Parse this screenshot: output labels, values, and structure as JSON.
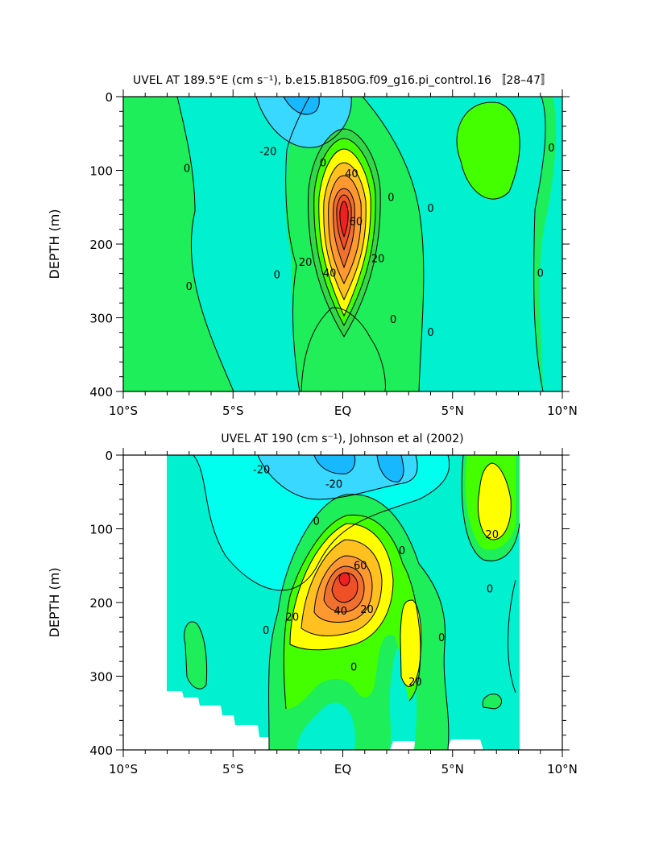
{
  "chart_data": [
    {
      "type": "contour",
      "title": "UVEL AT 189.5°E (cm s⁻¹), b.e15.B1850G.f09_g16.pi_control.16 〚28–47〛",
      "ylabel": "DEPTH (m)",
      "xlim": [
        -10,
        10
      ],
      "ylim": [
        400,
        0
      ],
      "x_ticks": [
        -10,
        -5,
        0,
        5,
        10
      ],
      "x_tick_labels": [
        "10°S",
        "5°S",
        "EQ",
        "5°N",
        "10°N"
      ],
      "y_ticks": [
        0,
        100,
        200,
        300,
        400
      ],
      "y_tick_labels": [
        "0",
        "100",
        "200",
        "300",
        "400"
      ],
      "core": {
        "lat": 0,
        "depth": 155,
        "max_speed": 95
      },
      "contour_labels": [
        {
          "text": "-20",
          "lat": -3.4,
          "depth": 75
        },
        {
          "text": "0",
          "lat": -7.1,
          "depth": 98
        },
        {
          "text": "0",
          "lat": -7.0,
          "depth": 258
        },
        {
          "text": "0",
          "lat": -3.0,
          "depth": 242
        },
        {
          "text": "0",
          "lat": -0.9,
          "depth": 90
        },
        {
          "text": "40",
          "lat": 0.4,
          "depth": 105
        },
        {
          "text": "60",
          "lat": 0.6,
          "depth": 170
        },
        {
          "text": "20",
          "lat": -1.7,
          "depth": 225
        },
        {
          "text": "40",
          "lat": -0.6,
          "depth": 240
        },
        {
          "text": "20",
          "lat": 1.6,
          "depth": 220
        },
        {
          "text": "0",
          "lat": 2.2,
          "depth": 137
        },
        {
          "text": "0",
          "lat": 4.0,
          "depth": 152
        },
        {
          "text": "0",
          "lat": 2.3,
          "depth": 303
        },
        {
          "text": "0",
          "lat": 4.0,
          "depth": 320
        },
        {
          "text": "0",
          "lat": 9.0,
          "depth": 240
        },
        {
          "text": "0",
          "lat": 9.5,
          "depth": 70
        }
      ]
    },
    {
      "type": "contour",
      "title": "UVEL AT 190 (cm s⁻¹), Johnson et al (2002)",
      "ylabel": "DEPTH (m)",
      "xlim": [
        -10,
        10
      ],
      "ylim": [
        400,
        0
      ],
      "x_ticks": [
        -10,
        -5,
        0,
        5,
        10
      ],
      "x_tick_labels": [
        "10°S",
        "5°S",
        "EQ",
        "5°N",
        "10°N"
      ],
      "y_ticks": [
        0,
        100,
        200,
        300,
        400
      ],
      "y_tick_labels": [
        "0",
        "100",
        "200",
        "300",
        "400"
      ],
      "data_extent_lat": [
        -8,
        8
      ],
      "core": {
        "lat": 0,
        "depth": 150,
        "max_speed": 100
      },
      "contour_labels": [
        {
          "text": "-20",
          "lat": -3.7,
          "depth": 20
        },
        {
          "text": "-20",
          "lat": -0.4,
          "depth": 40
        },
        {
          "text": "0",
          "lat": -1.2,
          "depth": 90
        },
        {
          "text": "60",
          "lat": 0.8,
          "depth": 150
        },
        {
          "text": "20",
          "lat": -2.3,
          "depth": 220
        },
        {
          "text": "40",
          "lat": -0.1,
          "depth": 212
        },
        {
          "text": "20",
          "lat": 1.1,
          "depth": 210
        },
        {
          "text": "0",
          "lat": 2.7,
          "depth": 130
        },
        {
          "text": "20",
          "lat": 6.8,
          "depth": 108
        },
        {
          "text": "0",
          "lat": 6.7,
          "depth": 182
        },
        {
          "text": "0",
          "lat": -3.5,
          "depth": 238
        },
        {
          "text": "0",
          "lat": 4.5,
          "depth": 248
        },
        {
          "text": "0",
          "lat": 0.5,
          "depth": 288
        },
        {
          "text": "20",
          "lat": 3.3,
          "depth": 308
        }
      ]
    }
  ]
}
